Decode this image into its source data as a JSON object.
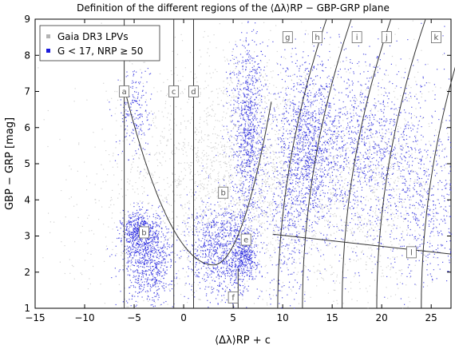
{
  "chart_data": {
    "type": "scatter",
    "title": "Definition of the different regions of the ⟨Δλ⟩RP − GBP-GRP plane",
    "xlabel": "⟨Δλ⟩RP + c",
    "ylabel": "GBP − GRP [mag]",
    "xlim": [
      -15,
      27
    ],
    "ylim": [
      1,
      9
    ],
    "x_ticks": [
      -15,
      -10,
      -5,
      0,
      5,
      10,
      15,
      20,
      25
    ],
    "x_tick_labels": [
      "−15",
      "−10",
      "−5",
      "0",
      "5",
      "10",
      "15",
      "20",
      "25"
    ],
    "y_ticks": [
      1,
      2,
      3,
      4,
      5,
      6,
      7,
      8,
      9
    ],
    "y_tick_labels": [
      "1",
      "2",
      "3",
      "4",
      "5",
      "6",
      "7",
      "8",
      "9"
    ],
    "grid": false,
    "legend_position": "top-left",
    "series": [
      {
        "name": "Gaia DR3 LPVs",
        "color": "#b4b4b4",
        "description_clusters": [
          {
            "cx": 5.0,
            "cy": 5.2,
            "sx": 5.0,
            "sy": 1.6,
            "n": 1400
          },
          {
            "cx": 12.0,
            "cy": 4.0,
            "sx": 6.0,
            "sy": 1.6,
            "n": 900
          },
          {
            "cx": 20.0,
            "cy": 4.5,
            "sx": 4.5,
            "sy": 1.6,
            "n": 700
          },
          {
            "cx": -3.0,
            "cy": 3.5,
            "sx": 6.0,
            "sy": 1.8,
            "n": 500
          }
        ]
      },
      {
        "name": "G < 17, NRP ≥ 50",
        "color": "#1a1adc",
        "description_clusters": [
          {
            "cx": -4.5,
            "cy": 3.1,
            "sx": 0.9,
            "sy": 0.3,
            "n": 500
          },
          {
            "cx": -3.5,
            "cy": 2.3,
            "sx": 1.3,
            "sy": 0.6,
            "n": 700
          },
          {
            "cx": -5.0,
            "cy": 6.5,
            "sx": 0.8,
            "sy": 0.7,
            "n": 200
          },
          {
            "cx": 6.5,
            "cy": 6.0,
            "sx": 0.9,
            "sy": 1.3,
            "n": 900
          },
          {
            "cx": 4.0,
            "cy": 2.6,
            "sx": 1.8,
            "sy": 0.7,
            "n": 1000
          },
          {
            "cx": 6.2,
            "cy": 2.5,
            "sx": 0.6,
            "sy": 0.3,
            "n": 250
          },
          {
            "cx": 12.8,
            "cy": 5.5,
            "sx": 1.2,
            "sy": 1.2,
            "n": 900
          },
          {
            "cx": 10.5,
            "cy": 4.0,
            "sx": 1.0,
            "sy": 1.8,
            "n": 500
          },
          {
            "cx": 17.0,
            "cy": 5.5,
            "sx": 2.2,
            "sy": 1.3,
            "n": 700
          },
          {
            "cx": 22.0,
            "cy": 5.2,
            "sx": 3.0,
            "sy": 1.4,
            "n": 600
          },
          {
            "cx": 25.0,
            "cy": 3.5,
            "sx": 2.0,
            "sy": 1.0,
            "n": 300
          }
        ]
      }
    ],
    "boundaries": {
      "verticals_x": [
        -6.0,
        -1.0,
        1.0
      ],
      "verticals_y_top": [
        9,
        9,
        9
      ],
      "curve_x_offsets": [
        9.5,
        12.0,
        16.0,
        19.5,
        24.0
      ],
      "curve_curvature": 0.22,
      "parabola": {
        "x0": 3.0,
        "y0": 2.2,
        "a": 0.11
      },
      "line_l": {
        "x1": 9.0,
        "y1": 3.05,
        "x2": 27.0,
        "y2": 2.5
      },
      "region_f_x": 5.5
    },
    "region_labels": [
      {
        "label": "a",
        "x": -6.0,
        "y": 7.0
      },
      {
        "label": "b",
        "x": -4.0,
        "y": 3.1
      },
      {
        "label": "b",
        "x": 4.0,
        "y": 4.2
      },
      {
        "label": "c",
        "x": -1.0,
        "y": 7.0
      },
      {
        "label": "d",
        "x": 1.0,
        "y": 7.0
      },
      {
        "label": "e",
        "x": 6.3,
        "y": 2.9
      },
      {
        "label": "f",
        "x": 5.0,
        "y": 1.3
      },
      {
        "label": "g",
        "x": 10.5,
        "y": 8.5
      },
      {
        "label": "h",
        "x": 13.5,
        "y": 8.5
      },
      {
        "label": "i",
        "x": 17.5,
        "y": 8.5
      },
      {
        "label": "j",
        "x": 20.5,
        "y": 8.5
      },
      {
        "label": "k",
        "x": 25.5,
        "y": 8.5
      },
      {
        "label": "l",
        "x": 23.0,
        "y": 2.55
      }
    ],
    "legend_entries": [
      "Gaia DR3 LPVs",
      "G < 17, NRP ≥ 50"
    ]
  }
}
